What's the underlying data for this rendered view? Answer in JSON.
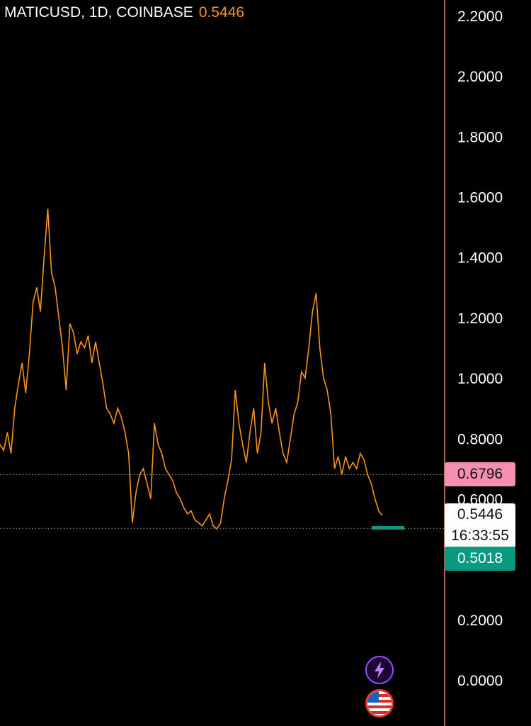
{
  "header": {
    "symbol_label": "MATICUSD, 1D, COINBASE",
    "last_price": "0.5446"
  },
  "colors": {
    "line": "#f7931a",
    "axis_border": "#e8896b",
    "grid_dots": "#9e9e9e",
    "high_badge": "#f48fb1",
    "low_badge": "#089981",
    "price_badge": "#ffffff"
  },
  "badges": {
    "high_value": "0.6796",
    "price_value": "0.5446",
    "countdown": "16:33:55",
    "low_value": "0.5018"
  },
  "icons": [
    "lightning-icon",
    "us-flag-icon"
  ],
  "chart_data": {
    "type": "line",
    "ylim": [
      0.0,
      2.2
    ],
    "y_ticks": [
      "2.2000",
      "2.0000",
      "1.8000",
      "1.6000",
      "1.4000",
      "1.2000",
      "1.0000",
      "0.8000",
      "0.6000",
      "0.2000",
      "0.0000"
    ],
    "reference_lines": [
      0.6796,
      0.5018
    ],
    "series": [
      {
        "values": [
          0.78,
          0.76,
          0.82,
          0.75,
          0.9,
          0.98,
          1.05,
          0.95,
          1.08,
          1.25,
          1.3,
          1.22,
          1.4,
          1.56,
          1.35,
          1.3,
          1.2,
          1.1,
          0.96,
          1.18,
          1.15,
          1.08,
          1.12,
          1.1,
          1.14,
          1.05,
          1.12,
          1.05,
          0.98,
          0.9,
          0.88,
          0.85,
          0.9,
          0.87,
          0.82,
          0.75,
          0.52,
          0.62,
          0.68,
          0.7,
          0.65,
          0.6,
          0.85,
          0.78,
          0.75,
          0.7,
          0.68,
          0.66,
          0.62,
          0.6,
          0.57,
          0.55,
          0.56,
          0.53,
          0.52,
          0.51,
          0.53,
          0.55,
          0.51,
          0.5,
          0.52,
          0.6,
          0.66,
          0.73,
          0.96,
          0.85,
          0.78,
          0.72,
          0.82,
          0.9,
          0.75,
          0.82,
          1.05,
          0.92,
          0.85,
          0.9,
          0.82,
          0.75,
          0.72,
          0.8,
          0.88,
          0.92,
          1.02,
          1.0,
          1.1,
          1.22,
          1.28,
          1.1,
          1.0,
          0.96,
          0.88,
          0.7,
          0.74,
          0.68,
          0.74,
          0.7,
          0.72,
          0.7,
          0.75,
          0.73,
          0.68,
          0.65,
          0.6,
          0.56,
          0.5446
        ]
      }
    ]
  }
}
